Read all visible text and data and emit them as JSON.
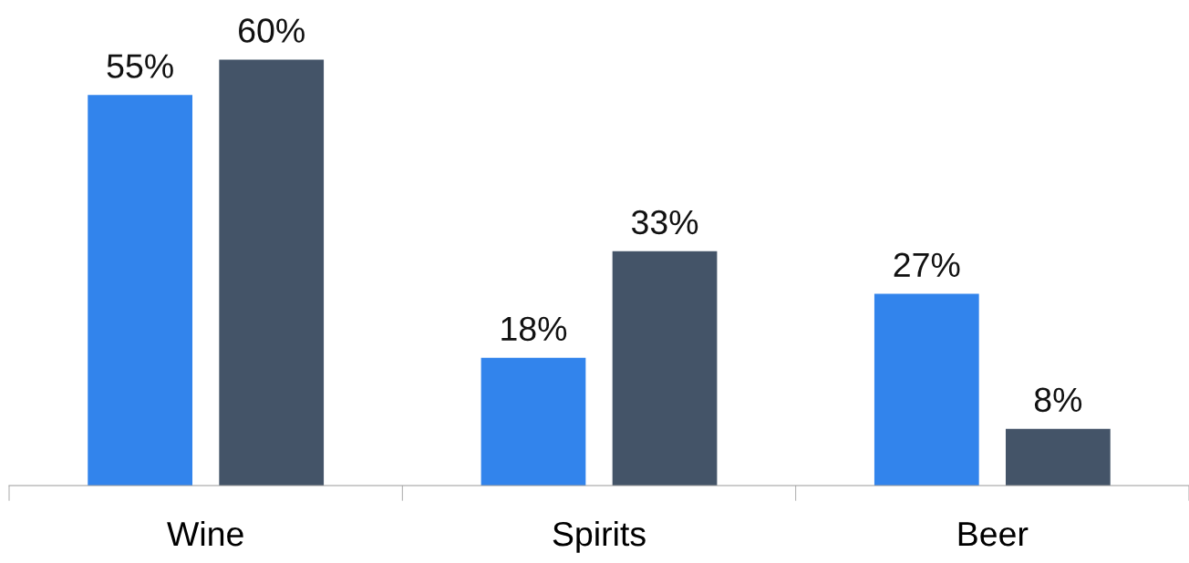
{
  "chart_data": {
    "type": "bar",
    "categories": [
      "Wine",
      "Spirits",
      "Beer"
    ],
    "series": [
      {
        "color": "#3284ec",
        "values": [
          55,
          18,
          27
        ],
        "value_labels": [
          "55%",
          "18%",
          "27%"
        ]
      },
      {
        "color": "#445468",
        "values": [
          60,
          33,
          8
        ],
        "value_labels": [
          "60%",
          "33%",
          "8%"
        ]
      }
    ]
  }
}
